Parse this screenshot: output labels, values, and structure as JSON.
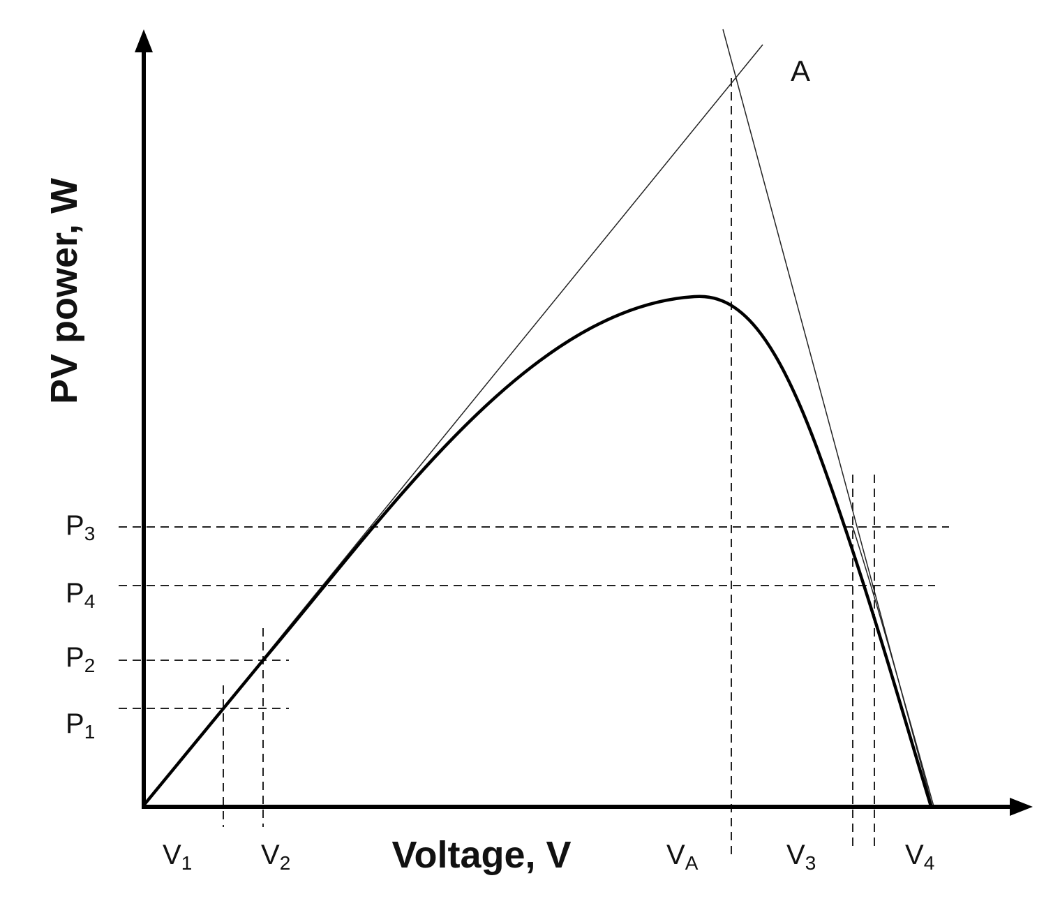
{
  "labels": {
    "y_axis_title": "PV power, W",
    "x_axis_title": "Voltage, V",
    "point_A": "A",
    "p_ticks": [
      {
        "main": "P",
        "sub": "3"
      },
      {
        "main": "P",
        "sub": "4"
      },
      {
        "main": "P",
        "sub": "2"
      },
      {
        "main": "P",
        "sub": "1"
      }
    ],
    "v_ticks": [
      {
        "main": "V",
        "sub": "1"
      },
      {
        "main": "V",
        "sub": "2"
      },
      {
        "main": "V",
        "sub": "A"
      },
      {
        "main": "V",
        "sub": "3"
      },
      {
        "main": "V",
        "sub": "4"
      }
    ]
  }
}
